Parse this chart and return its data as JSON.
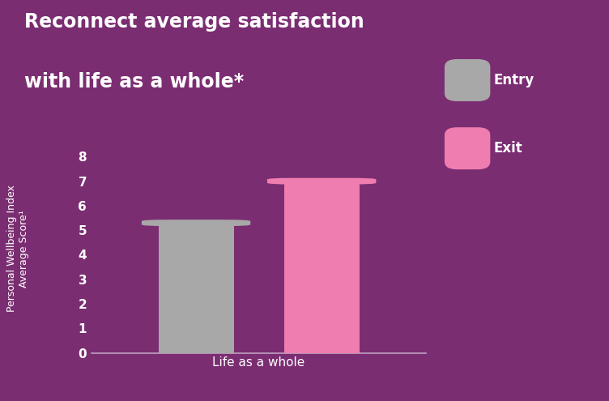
{
  "title_line1": "Reconnect average satisfaction",
  "title_line2": "with life as a whole*",
  "categories": [
    "Entry",
    "Exit"
  ],
  "values": [
    5.3,
    7.0
  ],
  "bar_colors": [
    "#a8a8a8",
    "#f07db0"
  ],
  "bar_width": 0.18,
  "bar_positions": [
    0.35,
    0.65
  ],
  "xlabel": "Life as a whole",
  "ylabel_line1": "Personal Wellbeing Index",
  "ylabel_line2": "Average Score¹",
  "ylim": [
    0,
    8.5
  ],
  "yticks": [
    0,
    1,
    2,
    3,
    4,
    5,
    6,
    7,
    8
  ],
  "background_color": "#7b2d72",
  "plot_bg_color": "#7b2d72",
  "axis_color": "#c0a0c0",
  "text_color": "#ffffff",
  "legend_labels": [
    "Entry",
    "Exit"
  ],
  "legend_colors": [
    "#a8a8a8",
    "#f07db0"
  ],
  "title_fontsize": 17,
  "label_fontsize": 11,
  "tick_fontsize": 11,
  "legend_fontsize": 12
}
